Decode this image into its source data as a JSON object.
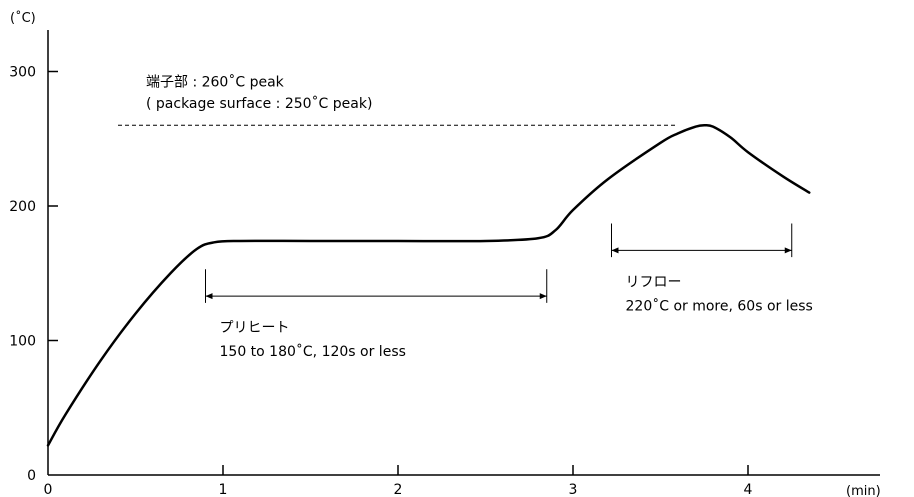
{
  "chart_data": {
    "type": "line",
    "title": "",
    "xlabel": "(min)",
    "ylabel": "(˚C)",
    "xlim": [
      0,
      4.6
    ],
    "ylim": [
      0,
      320
    ],
    "x_ticks": [
      0,
      1,
      2,
      3,
      4
    ],
    "y_ticks": [
      0,
      100,
      200,
      300
    ],
    "x_tick_labels": [
      "0",
      "1",
      "2",
      "3",
      "4"
    ],
    "y_tick_labels": [
      "0",
      "100",
      "200",
      "300"
    ],
    "grid": false,
    "series": [
      {
        "x": [
          0,
          0.1,
          0.3,
          0.5,
          0.7,
          0.85,
          0.95,
          1.1,
          1.5,
          2.0,
          2.5,
          2.8,
          2.9,
          3.0,
          3.2,
          3.5,
          3.6,
          3.7,
          3.75,
          3.8,
          3.9,
          4.0,
          4.2,
          4.35
        ],
        "y": [
          22,
          45,
          85,
          120,
          150,
          168,
          173,
          174,
          174,
          174,
          174,
          176,
          182,
          197,
          220,
          247,
          254,
          259,
          260,
          259,
          251,
          240,
          222,
          210
        ]
      }
    ],
    "peak_line": {
      "y": 260,
      "x_start": 0.4,
      "x_end": 3.6
    },
    "ranges": [
      {
        "label": "プリヒート",
        "detail": "150 to 180˚C, 120s or less",
        "x_start": 0.9,
        "x_end": 2.85,
        "y": 133,
        "tick_top": 153,
        "tick_bottom": 128
      },
      {
        "label": "リフロー",
        "detail": "220˚C or more, 60s or less",
        "x_start": 3.22,
        "x_end": 4.25,
        "y": 167,
        "tick_top": 187,
        "tick_bottom": 162
      }
    ],
    "annotations": [
      {
        "text": "端子部 : 260˚C peak",
        "x": 0.56,
        "y": 289
      },
      {
        "text": "( package surface : 250˚C peak)",
        "x": 0.56,
        "y": 273
      }
    ]
  }
}
